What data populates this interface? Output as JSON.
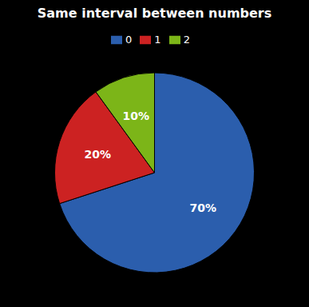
{
  "chart_data": {
    "type": "pie",
    "title": "Same interval between numbers",
    "categories": [
      "0",
      "1",
      "2"
    ],
    "values": [
      70,
      20,
      10
    ],
    "value_labels": [
      "70%",
      "20%",
      "10%"
    ],
    "colors": [
      "#2B5EAD",
      "#CC2222",
      "#7CB518"
    ],
    "data_labels": true,
    "legend": "top"
  }
}
